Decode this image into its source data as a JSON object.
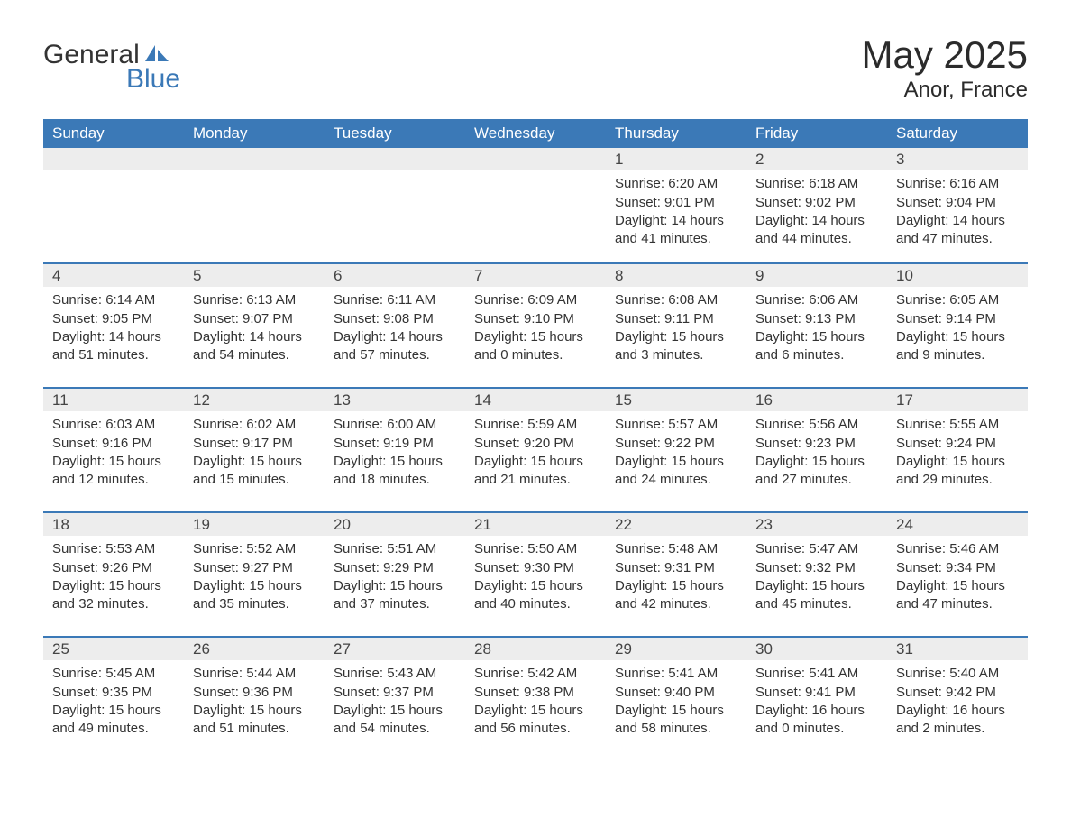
{
  "logo": {
    "word1": "General",
    "word2": "Blue"
  },
  "title": "May 2025",
  "location": "Anor, France",
  "colors": {
    "header_bg": "#3b79b7",
    "header_text": "#ffffff",
    "daynum_bg": "#ededed",
    "row_border": "#3b79b7",
    "body_text": "#333333",
    "logo_accent": "#3b79b7",
    "page_bg": "#ffffff"
  },
  "fonts": {
    "month_title_pt": 42,
    "location_pt": 24,
    "header_pt": 17,
    "daynum_pt": 17,
    "body_pt": 15
  },
  "columns": [
    "Sunday",
    "Monday",
    "Tuesday",
    "Wednesday",
    "Thursday",
    "Friday",
    "Saturday"
  ],
  "weeks": [
    [
      {
        "empty": true
      },
      {
        "empty": true
      },
      {
        "empty": true
      },
      {
        "empty": true
      },
      {
        "day": "1",
        "sunrise": "6:20 AM",
        "sunset": "9:01 PM",
        "daylight": "14 hours and 41 minutes."
      },
      {
        "day": "2",
        "sunrise": "6:18 AM",
        "sunset": "9:02 PM",
        "daylight": "14 hours and 44 minutes."
      },
      {
        "day": "3",
        "sunrise": "6:16 AM",
        "sunset": "9:04 PM",
        "daylight": "14 hours and 47 minutes."
      }
    ],
    [
      {
        "day": "4",
        "sunrise": "6:14 AM",
        "sunset": "9:05 PM",
        "daylight": "14 hours and 51 minutes."
      },
      {
        "day": "5",
        "sunrise": "6:13 AM",
        "sunset": "9:07 PM",
        "daylight": "14 hours and 54 minutes."
      },
      {
        "day": "6",
        "sunrise": "6:11 AM",
        "sunset": "9:08 PM",
        "daylight": "14 hours and 57 minutes."
      },
      {
        "day": "7",
        "sunrise": "6:09 AM",
        "sunset": "9:10 PM",
        "daylight": "15 hours and 0 minutes."
      },
      {
        "day": "8",
        "sunrise": "6:08 AM",
        "sunset": "9:11 PM",
        "daylight": "15 hours and 3 minutes."
      },
      {
        "day": "9",
        "sunrise": "6:06 AM",
        "sunset": "9:13 PM",
        "daylight": "15 hours and 6 minutes."
      },
      {
        "day": "10",
        "sunrise": "6:05 AM",
        "sunset": "9:14 PM",
        "daylight": "15 hours and 9 minutes."
      }
    ],
    [
      {
        "day": "11",
        "sunrise": "6:03 AM",
        "sunset": "9:16 PM",
        "daylight": "15 hours and 12 minutes."
      },
      {
        "day": "12",
        "sunrise": "6:02 AM",
        "sunset": "9:17 PM",
        "daylight": "15 hours and 15 minutes."
      },
      {
        "day": "13",
        "sunrise": "6:00 AM",
        "sunset": "9:19 PM",
        "daylight": "15 hours and 18 minutes."
      },
      {
        "day": "14",
        "sunrise": "5:59 AM",
        "sunset": "9:20 PM",
        "daylight": "15 hours and 21 minutes."
      },
      {
        "day": "15",
        "sunrise": "5:57 AM",
        "sunset": "9:22 PM",
        "daylight": "15 hours and 24 minutes."
      },
      {
        "day": "16",
        "sunrise": "5:56 AM",
        "sunset": "9:23 PM",
        "daylight": "15 hours and 27 minutes."
      },
      {
        "day": "17",
        "sunrise": "5:55 AM",
        "sunset": "9:24 PM",
        "daylight": "15 hours and 29 minutes."
      }
    ],
    [
      {
        "day": "18",
        "sunrise": "5:53 AM",
        "sunset": "9:26 PM",
        "daylight": "15 hours and 32 minutes."
      },
      {
        "day": "19",
        "sunrise": "5:52 AM",
        "sunset": "9:27 PM",
        "daylight": "15 hours and 35 minutes."
      },
      {
        "day": "20",
        "sunrise": "5:51 AM",
        "sunset": "9:29 PM",
        "daylight": "15 hours and 37 minutes."
      },
      {
        "day": "21",
        "sunrise": "5:50 AM",
        "sunset": "9:30 PM",
        "daylight": "15 hours and 40 minutes."
      },
      {
        "day": "22",
        "sunrise": "5:48 AM",
        "sunset": "9:31 PM",
        "daylight": "15 hours and 42 minutes."
      },
      {
        "day": "23",
        "sunrise": "5:47 AM",
        "sunset": "9:32 PM",
        "daylight": "15 hours and 45 minutes."
      },
      {
        "day": "24",
        "sunrise": "5:46 AM",
        "sunset": "9:34 PM",
        "daylight": "15 hours and 47 minutes."
      }
    ],
    [
      {
        "day": "25",
        "sunrise": "5:45 AM",
        "sunset": "9:35 PM",
        "daylight": "15 hours and 49 minutes."
      },
      {
        "day": "26",
        "sunrise": "5:44 AM",
        "sunset": "9:36 PM",
        "daylight": "15 hours and 51 minutes."
      },
      {
        "day": "27",
        "sunrise": "5:43 AM",
        "sunset": "9:37 PM",
        "daylight": "15 hours and 54 minutes."
      },
      {
        "day": "28",
        "sunrise": "5:42 AM",
        "sunset": "9:38 PM",
        "daylight": "15 hours and 56 minutes."
      },
      {
        "day": "29",
        "sunrise": "5:41 AM",
        "sunset": "9:40 PM",
        "daylight": "15 hours and 58 minutes."
      },
      {
        "day": "30",
        "sunrise": "5:41 AM",
        "sunset": "9:41 PM",
        "daylight": "16 hours and 0 minutes."
      },
      {
        "day": "31",
        "sunrise": "5:40 AM",
        "sunset": "9:42 PM",
        "daylight": "16 hours and 2 minutes."
      }
    ]
  ],
  "labels": {
    "sunrise_prefix": "Sunrise: ",
    "sunset_prefix": "Sunset: ",
    "daylight_prefix": "Daylight: "
  }
}
